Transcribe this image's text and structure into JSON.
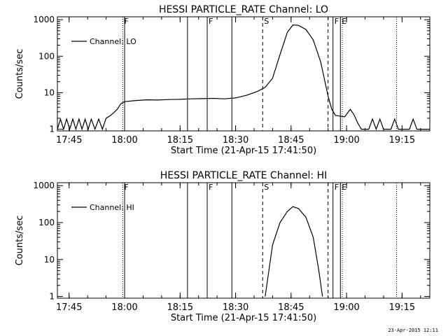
{
  "timestamp": "23-Apr-2015 12:11",
  "chart_data": [
    {
      "type": "line",
      "title": "HESSI PARTICLE_RATE Channel: LO",
      "xlabel": "Start Time (21-Apr-15 17:41:50)",
      "ylabel": "Counts/sec",
      "x_units": "time of day",
      "x_range": [
        "17:41:50",
        "19:22:30"
      ],
      "x_ticks": [
        "17:45",
        "18:00",
        "18:15",
        "18:30",
        "18:45",
        "19:00",
        "19:15"
      ],
      "y_scale": "log",
      "ylim": [
        0.9,
        1200
      ],
      "y_ticks": [
        "1",
        "10",
        "100",
        "1000"
      ],
      "legend": {
        "position": "top-left",
        "label": "Channel: LO"
      },
      "series": [
        {
          "name": "Channel: LO",
          "x": [
            "17:41:50",
            "17:42:40",
            "17:43:30",
            "17:44:20",
            "17:45:10",
            "17:46:00",
            "17:46:50",
            "17:47:40",
            "17:48:30",
            "17:49:20",
            "17:50:10",
            "17:51:00",
            "17:52:00",
            "17:53:00",
            "17:54:00",
            "17:55:00",
            "17:56:00",
            "17:57:00",
            "17:58:00",
            "17:59:00",
            "18:00:00",
            "18:03:00",
            "18:06:00",
            "18:09:00",
            "18:12:00",
            "18:15:00",
            "18:18:00",
            "18:21:00",
            "18:24:00",
            "18:27:00",
            "18:30:00",
            "18:33:00",
            "18:36:00",
            "18:38:00",
            "18:40:00",
            "18:42:00",
            "18:44:00",
            "18:45:30",
            "18:47:00",
            "18:49:00",
            "18:51:00",
            "18:53:00",
            "18:55:00",
            "18:56:00",
            "18:57:00",
            "18:58:00",
            "18:59:30",
            "19:01:00",
            "19:02:00",
            "19:03:00",
            "19:04:00",
            "19:05:00",
            "19:06:00",
            "19:07:00",
            "19:08:00",
            "19:09:00",
            "19:10:00",
            "19:11:00",
            "19:12:00",
            "19:13:00",
            "19:14:00",
            "19:15:00",
            "19:16:00",
            "19:17:00",
            "19:18:00",
            "19:19:00",
            "19:20:00",
            "19:21:00",
            "19:22:30"
          ],
          "values": [
            1,
            1.9,
            1,
            1.9,
            1,
            1.9,
            1,
            1.9,
            1,
            1.9,
            1,
            1.9,
            1,
            1.9,
            1,
            2,
            2.3,
            2.8,
            3.5,
            5,
            5.7,
            6.1,
            6.4,
            6.3,
            6.5,
            6.6,
            6.8,
            6.9,
            7,
            6.8,
            7.2,
            8.5,
            11,
            14,
            25,
            110,
            450,
            720,
            700,
            540,
            280,
            70,
            8,
            3.5,
            2.4,
            2.3,
            2.2,
            3.5,
            2.5,
            1.5,
            1,
            1,
            1,
            1.9,
            1,
            1.9,
            1,
            1,
            1,
            1.9,
            1,
            1,
            1,
            1,
            1.9,
            1,
            1,
            1,
            1
          ]
        }
      ],
      "annotations": [
        {
          "label": "F",
          "x": "17:59:30",
          "style": "dotted"
        },
        {
          "label": "",
          "x": "18:00:00",
          "style": "solid"
        },
        {
          "label": "",
          "x": "18:17:00",
          "style": "solid"
        },
        {
          "label": "F",
          "x": "18:22:20",
          "style": "solid"
        },
        {
          "label": "",
          "x": "18:29:00",
          "style": "solid"
        },
        {
          "label": "S",
          "x": "18:37:20",
          "style": "dashed"
        },
        {
          "label": "",
          "x": "18:55:00",
          "style": "dashed"
        },
        {
          "label": "F",
          "x": "18:56:20",
          "style": "solid"
        },
        {
          "label": "E",
          "x": "18:58:20",
          "style": "solid"
        },
        {
          "label": "",
          "x": "18:58:50",
          "style": "dotted"
        },
        {
          "label": "",
          "x": "19:13:30",
          "style": "dotted"
        }
      ]
    },
    {
      "type": "line",
      "title": "HESSI PARTICLE_RATE Channel: HI",
      "xlabel": "Start Time (21-Apr-15 17:41:50)",
      "ylabel": "Counts/sec",
      "x_units": "time of day",
      "x_range": [
        "17:41:50",
        "19:22:30"
      ],
      "x_ticks": [
        "17:45",
        "18:00",
        "18:15",
        "18:30",
        "18:45",
        "19:00",
        "19:15"
      ],
      "y_scale": "log",
      "ylim": [
        0.9,
        1200
      ],
      "y_ticks": [
        "1",
        "10",
        "100",
        "1000"
      ],
      "legend": {
        "position": "top-left",
        "label": "Channel: HI"
      },
      "series": [
        {
          "name": "Channel: HI",
          "x": [
            "18:38:00",
            "18:39:00",
            "18:40:00",
            "18:42:00",
            "18:44:00",
            "18:45:30",
            "18:47:00",
            "18:49:00",
            "18:51:00",
            "18:52:30",
            "18:53:30"
          ],
          "values": [
            1,
            5,
            25,
            100,
            200,
            270,
            240,
            140,
            40,
            5,
            1
          ]
        }
      ],
      "annotations": [
        {
          "label": "F",
          "x": "17:59:30",
          "style": "dotted"
        },
        {
          "label": "",
          "x": "18:00:00",
          "style": "solid"
        },
        {
          "label": "",
          "x": "18:17:00",
          "style": "solid"
        },
        {
          "label": "F",
          "x": "18:22:20",
          "style": "solid"
        },
        {
          "label": "",
          "x": "18:29:00",
          "style": "solid"
        },
        {
          "label": "S",
          "x": "18:37:20",
          "style": "dashed"
        },
        {
          "label": "",
          "x": "18:55:00",
          "style": "dashed"
        },
        {
          "label": "F",
          "x": "18:56:20",
          "style": "solid"
        },
        {
          "label": "E",
          "x": "18:58:20",
          "style": "solid"
        },
        {
          "label": "",
          "x": "18:58:50",
          "style": "dotted"
        },
        {
          "label": "",
          "x": "19:13:30",
          "style": "dotted"
        }
      ]
    }
  ]
}
